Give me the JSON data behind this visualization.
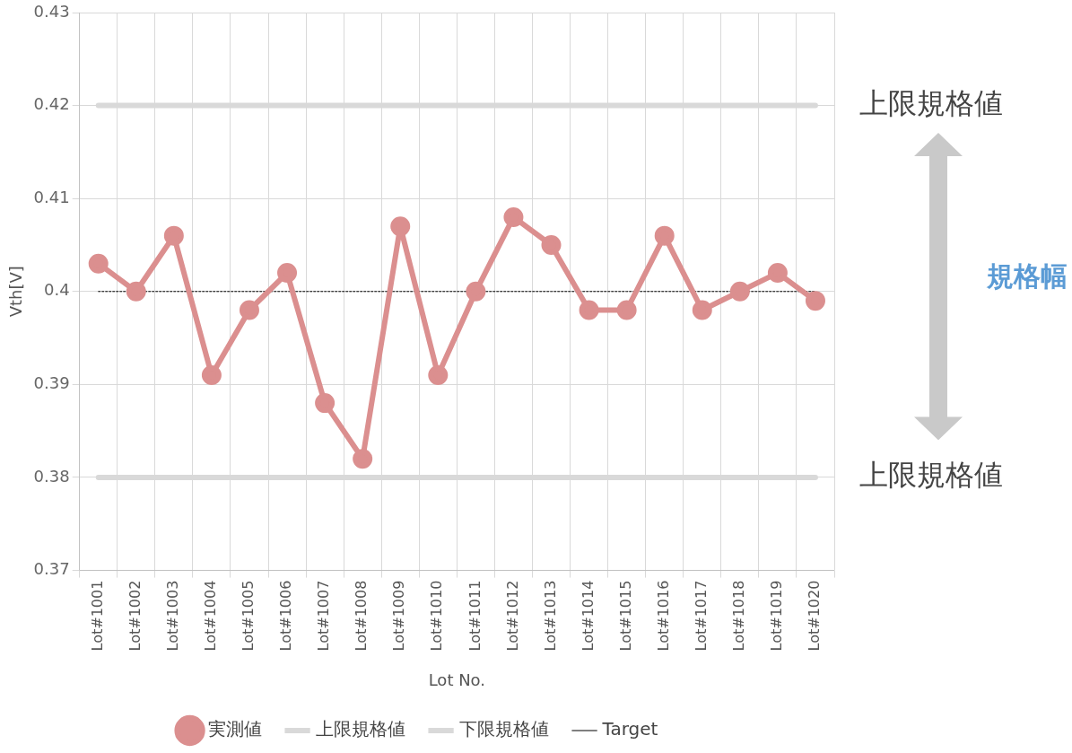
{
  "chart_data": {
    "type": "line",
    "xlabel": "Lot No.",
    "ylabel": "Vth[V]",
    "categories": [
      "Lot#1001",
      "Lot#1002",
      "Lot#1003",
      "Lot#1004",
      "Lot#1005",
      "Lot#1006",
      "Lot#1007",
      "Lot#1008",
      "Lot#1009",
      "Lot#1010",
      "Lot#1011",
      "Lot#1012",
      "Lot#1013",
      "Lot#1014",
      "Lot#1015",
      "Lot#1016",
      "Lot#1017",
      "Lot#1018",
      "Lot#1019",
      "Lot#1020"
    ],
    "series": [
      {
        "name": "実測値",
        "color": "#db8f8f",
        "values": [
          0.403,
          0.4,
          0.406,
          0.391,
          0.398,
          0.402,
          0.388,
          0.382,
          0.407,
          0.391,
          0.4,
          0.408,
          0.405,
          0.398,
          0.398,
          0.406,
          0.398,
          0.4,
          0.402,
          0.399
        ]
      },
      {
        "name": "上限規格値",
        "color": "#d9d9d9",
        "marker": "none",
        "values": [
          0.42,
          0.42,
          0.42,
          0.42,
          0.42,
          0.42,
          0.42,
          0.42,
          0.42,
          0.42,
          0.42,
          0.42,
          0.42,
          0.42,
          0.42,
          0.42,
          0.42,
          0.42,
          0.42,
          0.42
        ]
      },
      {
        "name": "下限規格値",
        "color": "#d9d9d9",
        "marker": "none",
        "values": [
          0.38,
          0.38,
          0.38,
          0.38,
          0.38,
          0.38,
          0.38,
          0.38,
          0.38,
          0.38,
          0.38,
          0.38,
          0.38,
          0.38,
          0.38,
          0.38,
          0.38,
          0.38,
          0.38,
          0.38
        ]
      },
      {
        "name": "Target",
        "color": "#000000",
        "marker": "none",
        "line_style": "dashed",
        "values": [
          0.4,
          0.4,
          0.4,
          0.4,
          0.4,
          0.4,
          0.4,
          0.4,
          0.4,
          0.4,
          0.4,
          0.4,
          0.4,
          0.4,
          0.4,
          0.4,
          0.4,
          0.4,
          0.4,
          0.4
        ]
      }
    ],
    "ylim": [
      0.37,
      0.43
    ],
    "yticks": [
      0.37,
      0.38,
      0.39,
      0.4,
      0.41,
      0.42,
      0.43
    ],
    "grid": true,
    "legend": "bottom",
    "marker": "circle",
    "annotations": [
      "上限規格値",
      "規格幅",
      "上限規格値"
    ]
  }
}
